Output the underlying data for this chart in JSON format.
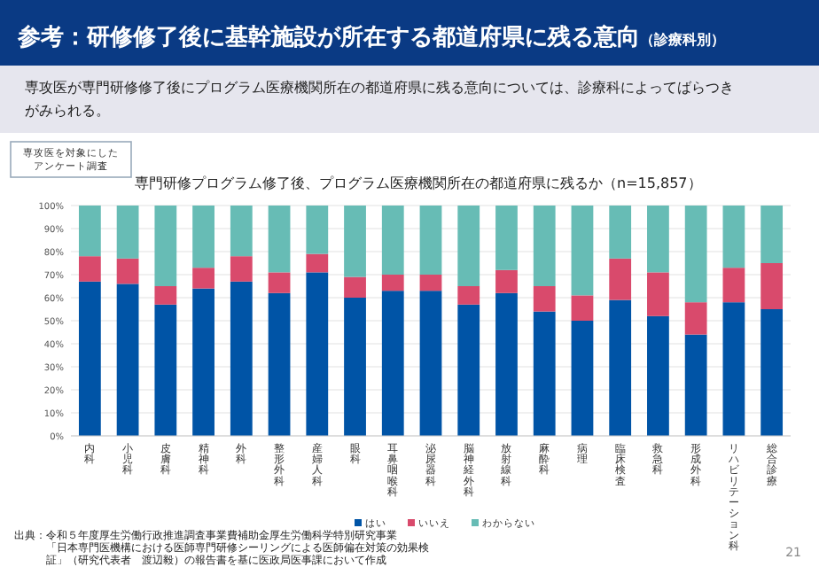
{
  "chart_data": {
    "type": "bar",
    "stacked": true,
    "title": "参考：研修修了後に基幹施設が所在する都道府県に残る意向",
    "subtitle": "専門研修プログラム修了後、プログラム医療機関所在の都道府県に残るか（n=15,857）",
    "annotations": [
      "（診療科別）",
      "専攻医が専門研修修了後にプログラム医療機関所在の都道府県に残る意向については、診療科によってばらつきがみられる。",
      "専攻医を対象にしたアンケート調査",
      "出典：令和５年度厚生労働行政推進調査事業費補助金厚生労働科学特別研究事業",
      "「日本専門医機構における医師専門研修シーリングによる医師偏在対策の効果検証」（研究代表者　渡辺毅）の報告書を基に医政局医事課において作成",
      "21"
    ],
    "categories": [
      "内科",
      "小児科",
      "皮膚科",
      "精神科",
      "外科",
      "整形外科",
      "産婦人科",
      "眼科",
      "耳鼻咽喉科",
      "泌尿器科",
      "脳神経外科",
      "放射線科",
      "麻酔科",
      "病理",
      "臨床検査",
      "救急科",
      "形成外科",
      "リハビリテーション科",
      "総合診療"
    ],
    "series": [
      {
        "name": "はい",
        "color": "#0054a6",
        "values": [
          67,
          66,
          57,
          64,
          67,
          62,
          71,
          60,
          63,
          63,
          57,
          62,
          54,
          50,
          59,
          52,
          44,
          58,
          55
        ]
      },
      {
        "name": "いいえ",
        "color": "#d94a6c",
        "values": [
          11,
          11,
          8,
          9,
          11,
          9,
          8,
          9,
          7,
          7,
          8,
          10,
          11,
          11,
          18,
          19,
          14,
          15,
          20
        ]
      },
      {
        "name": "わからない",
        "color": "#67bcb5",
        "values": [
          22,
          23,
          35,
          27,
          22,
          29,
          21,
          31,
          30,
          30,
          35,
          28,
          35,
          39,
          23,
          29,
          42,
          27,
          25
        ]
      }
    ],
    "ylim": [
      0,
      100
    ],
    "yticks": [
      {
        "value": 0,
        "label": "0%"
      },
      {
        "value": 10,
        "label": "10%"
      },
      {
        "value": 20,
        "label": "20%"
      },
      {
        "value": 30,
        "label": "30%"
      },
      {
        "value": 40,
        "label": "40%"
      },
      {
        "value": 50,
        "label": "50%"
      },
      {
        "value": 60,
        "label": "60%"
      },
      {
        "value": 70,
        "label": "70%"
      },
      {
        "value": 80,
        "label": "80%"
      },
      {
        "value": 90,
        "label": "90%"
      },
      {
        "value": 100,
        "label": "100%"
      }
    ],
    "grid": "y",
    "legend": "bottom"
  }
}
